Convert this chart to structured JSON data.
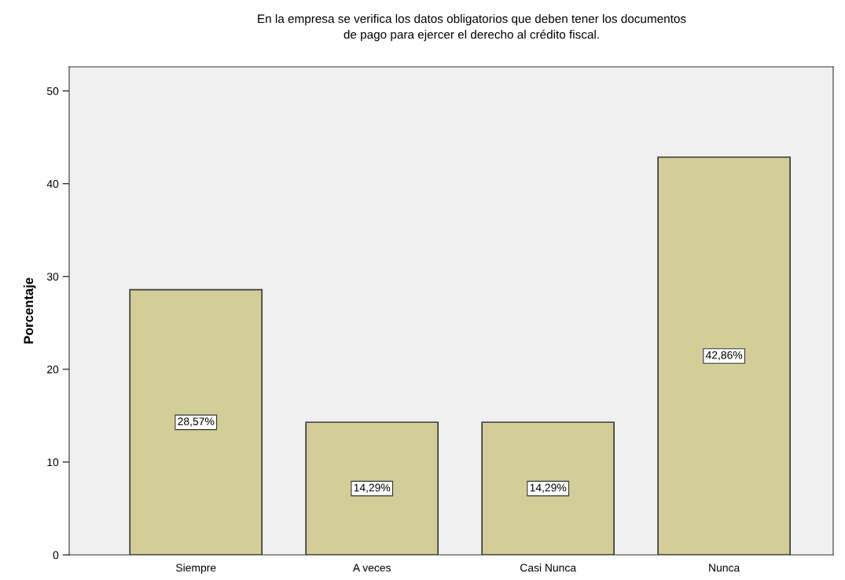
{
  "chart_data": {
    "type": "bar",
    "title": "En la empresa se verifica los datos obligatorios que deben tener los documentos\nde pago para ejercer el derecho al crédito fiscal.",
    "ylabel": "Porcentaje",
    "categories": [
      "Siempre",
      "A veces",
      "Casi Nunca",
      "Nunca"
    ],
    "values": [
      28.57,
      14.29,
      14.29,
      42.86
    ],
    "value_labels": [
      "28,57%",
      "14,29%",
      "14,29%",
      "42,86%"
    ],
    "color": "#d3ce98",
    "ylim": [
      0,
      52.6
    ],
    "yticks": [
      0,
      10,
      20,
      30,
      40,
      50
    ],
    "grid": false
  }
}
